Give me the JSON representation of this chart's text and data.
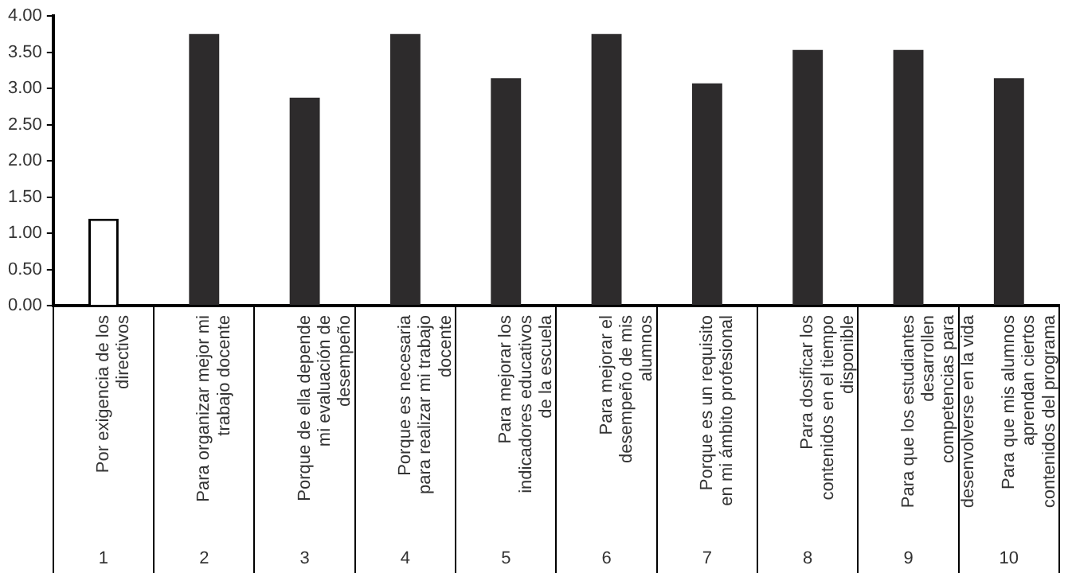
{
  "chart_data": {
    "type": "bar",
    "categories": [
      "Por exigencia de los directivos",
      "Para organizar mejor mi trabajo docente",
      "Porque de ella depende mi evaluación de desempeño",
      "Porque es necesaria para realizar mi trabajo docente",
      "Para mejorar los indicadores educativos de la escuela",
      "Para mejorar el desempeño de mis alumnos",
      "Porque es un requisito en mi ámbito profesional",
      "Para dosificar los contenidos en el tiempo disponible",
      "Para que los estudiantes desarrollen competencias para desenvolverse en la vida",
      "Para que mis alumnos aprendan ciertos contenidos del programa"
    ],
    "values": [
      1.2,
      3.75,
      2.87,
      3.75,
      3.14,
      3.75,
      3.07,
      3.53,
      3.53,
      3.14
    ],
    "colors": [
      "#ffffff",
      "#2d2b2c",
      "#2d2b2c",
      "#2d2b2c",
      "#2d2b2c",
      "#2d2b2c",
      "#2d2b2c",
      "#2d2b2c",
      "#2d2b2c",
      "#2d2b2c"
    ],
    "ylim": [
      0,
      4
    ],
    "yticks": [
      {
        "value": 0,
        "label": "0.00"
      },
      {
        "value": 0.5,
        "label": "0.50"
      },
      {
        "value": 1,
        "label": "1.00"
      },
      {
        "value": 1.5,
        "label": "1.50"
      },
      {
        "value": 2,
        "label": "2.00"
      },
      {
        "value": 2.5,
        "label": "2.50"
      },
      {
        "value": 3,
        "label": "3.00"
      },
      {
        "value": 3.5,
        "label": "3.50"
      },
      {
        "value": 4,
        "label": "4.00"
      }
    ],
    "grid": false,
    "legend": false,
    "annotations": [
      "1",
      "2",
      "3",
      "4",
      "5",
      "6",
      "7",
      "8",
      "9",
      "10"
    ]
  }
}
